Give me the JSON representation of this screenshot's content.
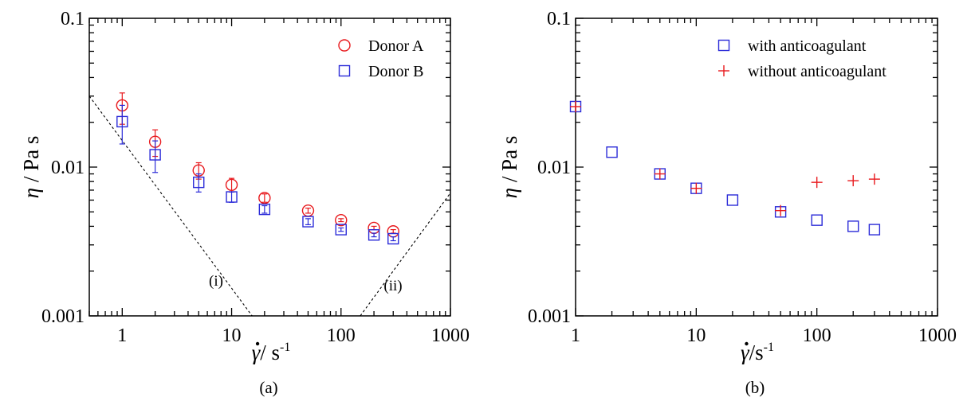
{
  "chart_data": [
    {
      "panel": "(a)",
      "type": "scatter",
      "x_scale": "log",
      "y_scale": "log",
      "xlim": [
        0.5,
        1000
      ],
      "ylim": [
        0.001,
        0.1
      ],
      "xticks": [
        "1",
        "10",
        "100",
        "1000"
      ],
      "yticks": [
        "0.001",
        "0.01",
        "0.1"
      ],
      "xlabel": {
        "symbol": "γ",
        "rest": "/ s",
        "sup": "-1"
      },
      "ylabel": {
        "symbol": "η",
        "rest": "/ Pa s"
      },
      "legend_position": "top-right",
      "grid": false,
      "series": [
        {
          "name": "Donor A",
          "marker": "circle",
          "color": "#e8191d",
          "x": [
            1,
            2,
            5,
            10,
            20,
            50,
            100,
            200,
            300
          ],
          "y": [
            0.026,
            0.0148,
            0.0095,
            0.0076,
            0.0062,
            0.0051,
            0.0044,
            0.0039,
            0.0037
          ],
          "err_low": [
            0.0194,
            0.0118,
            0.0083,
            0.0068,
            0.0058,
            0.0049,
            0.0043,
            0.0038,
            0.0036
          ],
          "err_high": [
            0.0315,
            0.0178,
            0.0107,
            0.0084,
            0.0066,
            0.0053,
            0.0045,
            0.004,
            0.0038
          ]
        },
        {
          "name": "Donor B",
          "marker": "square",
          "color": "#2b2bd8",
          "x": [
            1,
            2,
            5,
            10,
            20,
            50,
            100,
            200,
            300
          ],
          "y": [
            0.0202,
            0.0121,
            0.0079,
            0.0063,
            0.0052,
            0.0043,
            0.0038,
            0.0035,
            0.0033
          ],
          "err_low": [
            0.0143,
            0.0092,
            0.0068,
            0.0058,
            0.0049,
            0.0041,
            0.0037,
            0.0034,
            0.0032
          ],
          "err_high": [
            0.026,
            0.015,
            0.009,
            0.0068,
            0.0055,
            0.0045,
            0.0039,
            0.0036,
            0.0034
          ]
        }
      ],
      "annotations": [
        {
          "text": "(i)",
          "line": [
            [
              0.5,
              0.03
            ],
            [
              15.4,
              0.001
            ]
          ]
        },
        {
          "text": "(ii)",
          "line": [
            [
              150,
              0.001
            ],
            [
              1000,
              0.0067
            ]
          ]
        }
      ],
      "caption": "(a)"
    },
    {
      "panel": "(b)",
      "type": "scatter",
      "x_scale": "log",
      "y_scale": "log",
      "xlim": [
        1,
        1000
      ],
      "ylim": [
        0.001,
        0.1
      ],
      "xticks": [
        "1",
        "10",
        "100",
        "1000"
      ],
      "yticks": [
        "0.001",
        "0.01",
        "0.1"
      ],
      "xlabel": {
        "symbol": "γ",
        "rest": "/s",
        "sup": "-1"
      },
      "ylabel": {
        "symbol": "η",
        "rest": "/ Pa s"
      },
      "legend_position": "top-right",
      "grid": false,
      "series": [
        {
          "name": "with anticoagulant",
          "marker": "square",
          "color": "#2b2bd8",
          "x": [
            1,
            2,
            5,
            10,
            20,
            50,
            100,
            200,
            300
          ],
          "y": [
            0.0255,
            0.0126,
            0.009,
            0.0072,
            0.006,
            0.005,
            0.0044,
            0.004,
            0.0038
          ]
        },
        {
          "name": "without anticoagulant",
          "marker": "plus",
          "color": "#e8191d",
          "x": [
            1,
            5,
            10,
            50,
            100,
            200,
            300
          ],
          "y": [
            0.0255,
            0.009,
            0.0072,
            0.0051,
            0.0079,
            0.0081,
            0.0083
          ]
        }
      ],
      "caption": "(b)"
    }
  ]
}
